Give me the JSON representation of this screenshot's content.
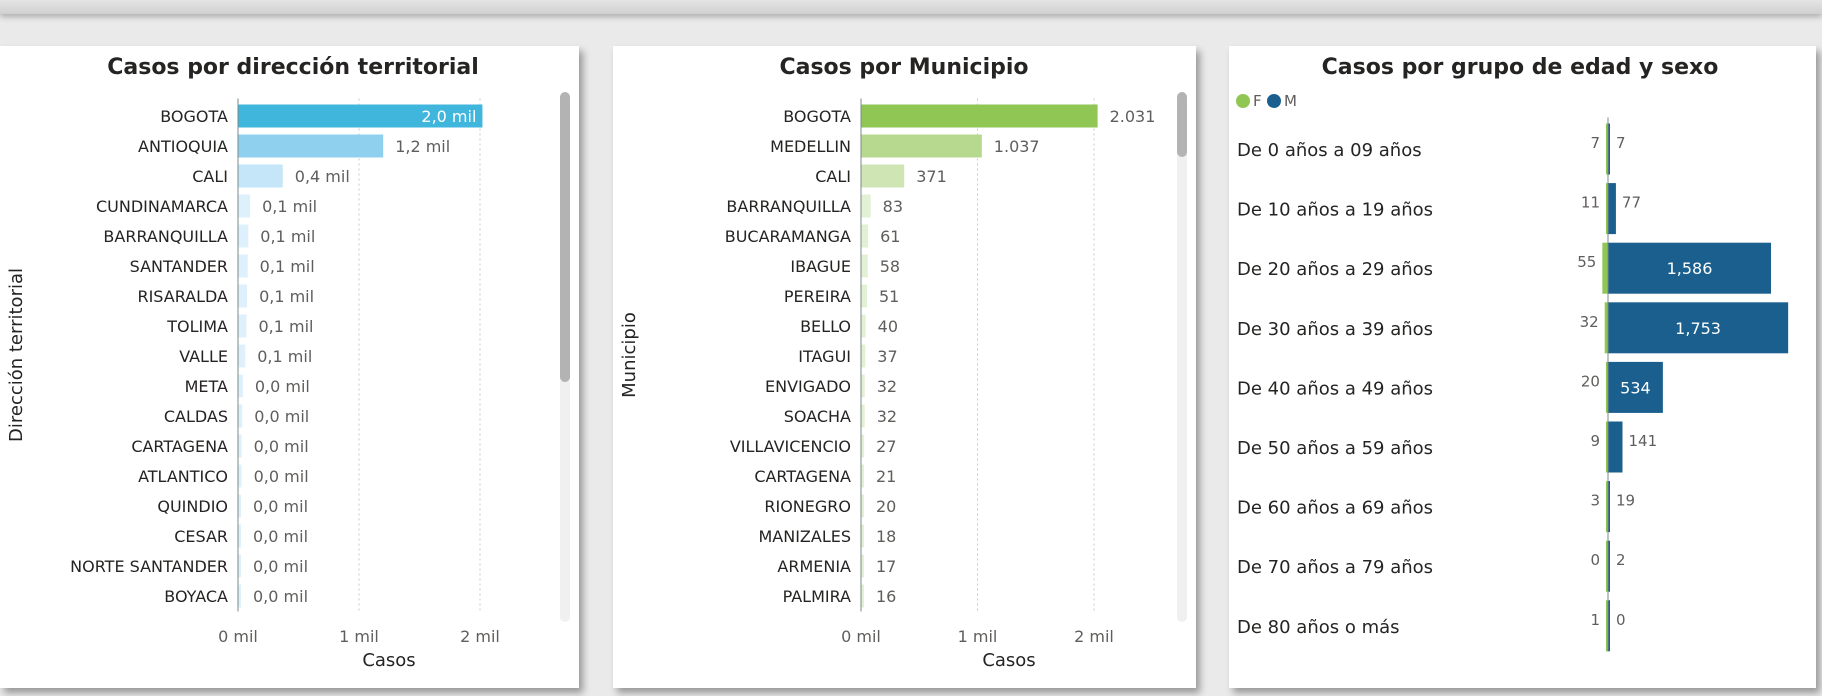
{
  "colors": {
    "bar_territorial": [
      "#41b6dc",
      "#8ed0ee",
      "#c4e6f8",
      "#ddf0fb"
    ],
    "bar_municipio": [
      "#8fc654",
      "#b7d98f",
      "#cfe6b4",
      "#e2f0d4"
    ],
    "female": "#8fc654",
    "male": "#1a5f8e",
    "axis": "#7a8a8a",
    "grid": "#c8c8c8",
    "scrollbar_track": "#f0f0f0",
    "scrollbar_thumb": "#b3b3b3"
  },
  "chart_data": [
    {
      "type": "bar",
      "orientation": "horizontal",
      "title": "Casos por dirección territorial",
      "xlabel": "Casos",
      "ylabel": "Dirección territorial",
      "xlim": [
        0,
        2000
      ],
      "xticks": [
        {
          "value": 0,
          "label": "0 mil"
        },
        {
          "value": 1000,
          "label": "1 mil"
        },
        {
          "value": 2000,
          "label": "2 mil"
        }
      ],
      "grid": true,
      "categories": [
        "BOGOTA",
        "ANTIOQUIA",
        "CALI",
        "CUNDINAMARCA",
        "BARRANQUILLA",
        "SANTANDER",
        "RISARALDA",
        "TOLIMA",
        "VALLE",
        "META",
        "CALDAS",
        "CARTAGENA",
        "ATLANTICO",
        "QUINDIO",
        "CESAR",
        "NORTE SANTANDER",
        "BOYACA"
      ],
      "values": [
        2020,
        1200,
        370,
        100,
        85,
        80,
        75,
        70,
        60,
        40,
        35,
        30,
        30,
        25,
        20,
        20,
        15
      ],
      "labels": [
        "2,0 mil",
        "1,2 mil",
        "0,4 mil",
        "0,1 mil",
        "0,1 mil",
        "0,1 mil",
        "0,1 mil",
        "0,1 mil",
        "0,1 mil",
        "0,0 mil",
        "0,0 mil",
        "0,0 mil",
        "0,0 mil",
        "0,0 mil",
        "0,0 mil",
        "0,0 mil",
        "0,0 mil"
      ]
    },
    {
      "type": "bar",
      "orientation": "horizontal",
      "title": "Casos por Municipio",
      "xlabel": "Casos",
      "ylabel": "Municipio",
      "xlim": [
        0,
        2000
      ],
      "xticks": [
        {
          "value": 0,
          "label": "0 mil"
        },
        {
          "value": 1000,
          "label": "1 mil"
        },
        {
          "value": 2000,
          "label": "2 mil"
        }
      ],
      "grid": true,
      "categories": [
        "BOGOTA",
        "MEDELLIN",
        "CALI",
        "BARRANQUILLA",
        "BUCARAMANGA",
        "IBAGUE",
        "PEREIRA",
        "BELLO",
        "ITAGUI",
        "ENVIGADO",
        "SOACHA",
        "VILLAVICENCIO",
        "CARTAGENA",
        "RIONEGRO",
        "MANIZALES",
        "ARMENIA",
        "PALMIRA"
      ],
      "values": [
        2031,
        1037,
        371,
        83,
        61,
        58,
        51,
        40,
        37,
        32,
        32,
        27,
        21,
        20,
        18,
        17,
        16
      ],
      "labels": [
        "2.031",
        "1.037",
        "371",
        "83",
        "61",
        "58",
        "51",
        "40",
        "37",
        "32",
        "32",
        "27",
        "21",
        "20",
        "18",
        "17",
        "16"
      ]
    },
    {
      "type": "bar",
      "orientation": "horizontal",
      "subtype": "population-pyramid",
      "title": "Casos por grupo de edad y sexo",
      "legend": {
        "position": "top-left",
        "entries": [
          "F",
          "M"
        ]
      },
      "categories": [
        "De 0 años a 09 años",
        "De 10 años a 19 años",
        "De 20 años a 29 años",
        "De 30 años a 39 años",
        "De 40 años a 49 años",
        "De 50 años a 59 años",
        "De 60 años a 69 años",
        "De 70 años a 79 años",
        "De 80 años o más"
      ],
      "series": [
        {
          "name": "F",
          "values": [
            7,
            11,
            55,
            32,
            20,
            9,
            3,
            0,
            1
          ],
          "labels": [
            "7",
            "11",
            "55",
            "32",
            "20",
            "9",
            "3",
            "0",
            "1"
          ]
        },
        {
          "name": "M",
          "values": [
            7,
            77,
            1586,
            1753,
            534,
            141,
            19,
            2,
            0
          ],
          "labels": [
            "7",
            "77",
            "1,586",
            "1,753",
            "534",
            "141",
            "19",
            "2",
            "0"
          ]
        }
      ]
    }
  ]
}
